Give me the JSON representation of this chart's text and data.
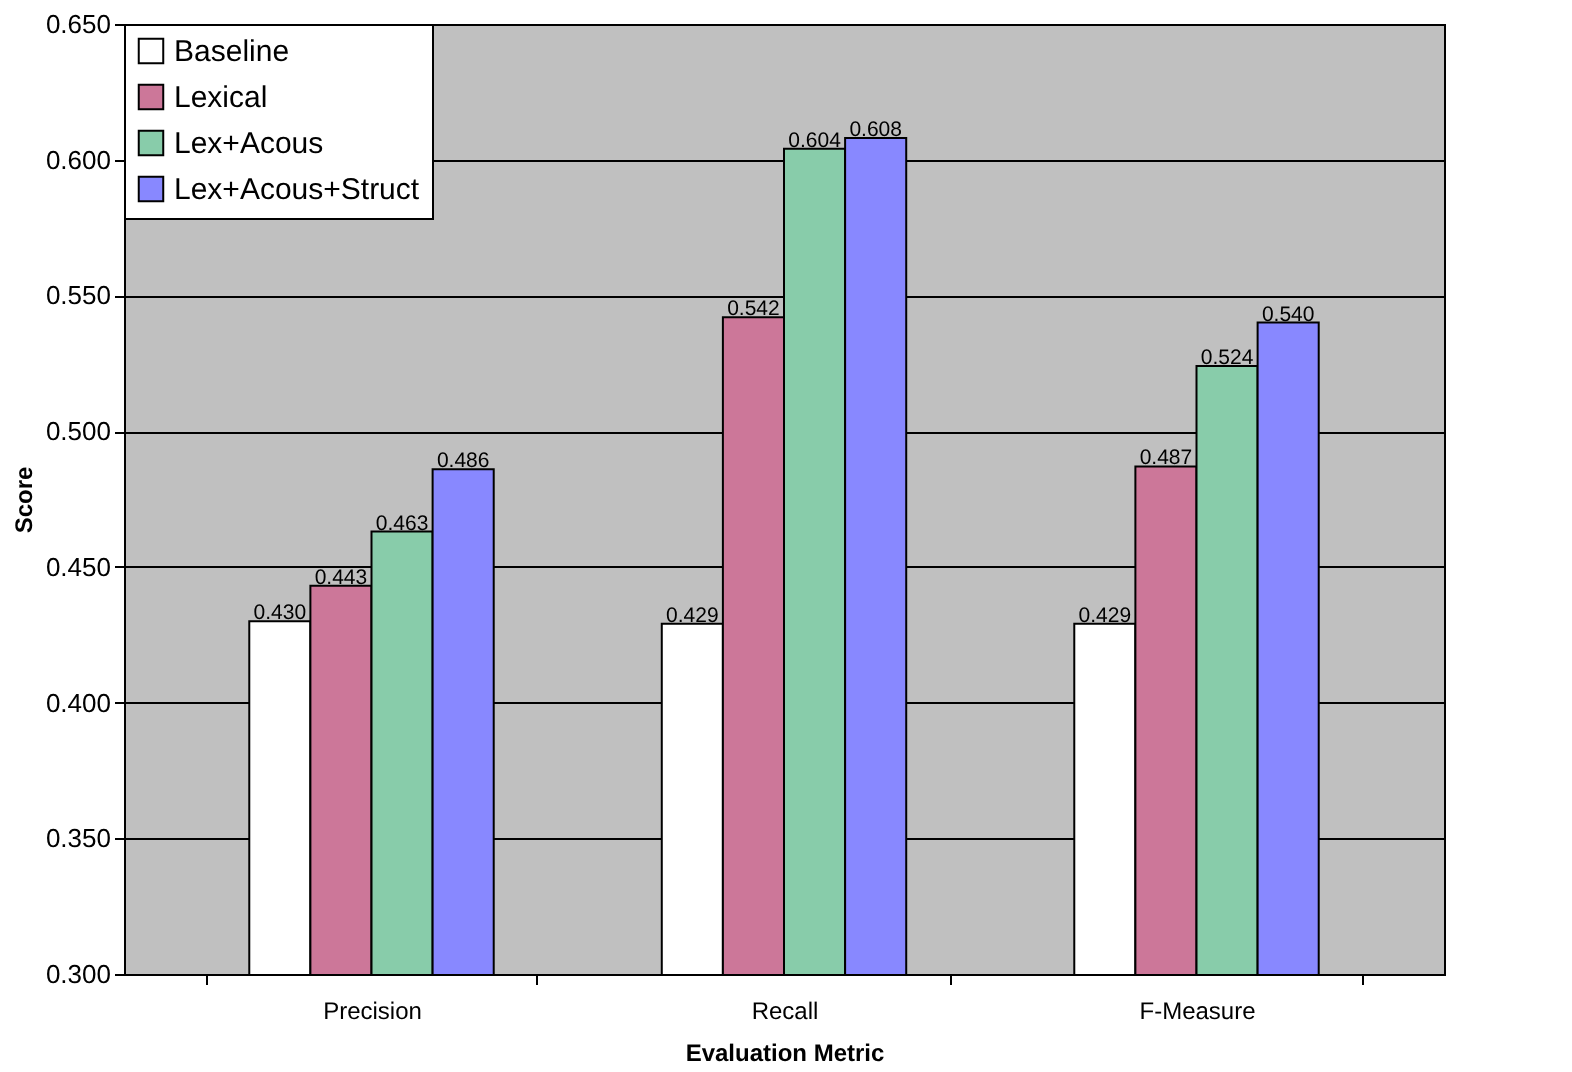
{
  "chart_data": {
    "type": "bar",
    "xlabel": "Evaluation Metric",
    "ylabel": "Score",
    "categories": [
      "Precision",
      "Recall",
      "F-Measure"
    ],
    "series": [
      {
        "name": "Baseline",
        "color": "#ffffff",
        "values": [
          0.43,
          0.429,
          0.429
        ]
      },
      {
        "name": "Lexical",
        "color": "#cc7799",
        "values": [
          0.443,
          0.542,
          0.487
        ]
      },
      {
        "name": "Lex+Acous",
        "color": "#88ccaa",
        "values": [
          0.463,
          0.604,
          0.524
        ]
      },
      {
        "name": "Lex+Acous+Struct",
        "color": "#8888ff",
        "values": [
          0.486,
          0.608,
          0.54
        ]
      }
    ],
    "ylim": [
      0.3,
      0.65
    ],
    "yticks": [
      {
        "value": 0.3,
        "label": "0.300"
      },
      {
        "value": 0.35,
        "label": "0.350"
      },
      {
        "value": 0.4,
        "label": "0.400"
      },
      {
        "value": 0.45,
        "label": "0.450"
      },
      {
        "value": 0.5,
        "label": "0.500"
      },
      {
        "value": 0.55,
        "label": "0.550"
      },
      {
        "value": 0.6,
        "label": "0.600"
      },
      {
        "value": 0.65,
        "label": "0.650"
      }
    ],
    "value_labels": [
      [
        "0.430",
        "0.429",
        "0.429"
      ],
      [
        "0.443",
        "0.542",
        "0.487"
      ],
      [
        "0.463",
        "0.604",
        "0.524"
      ],
      [
        "0.486",
        "0.608",
        "0.540"
      ]
    ],
    "grid": "y",
    "legend": "top left"
  }
}
